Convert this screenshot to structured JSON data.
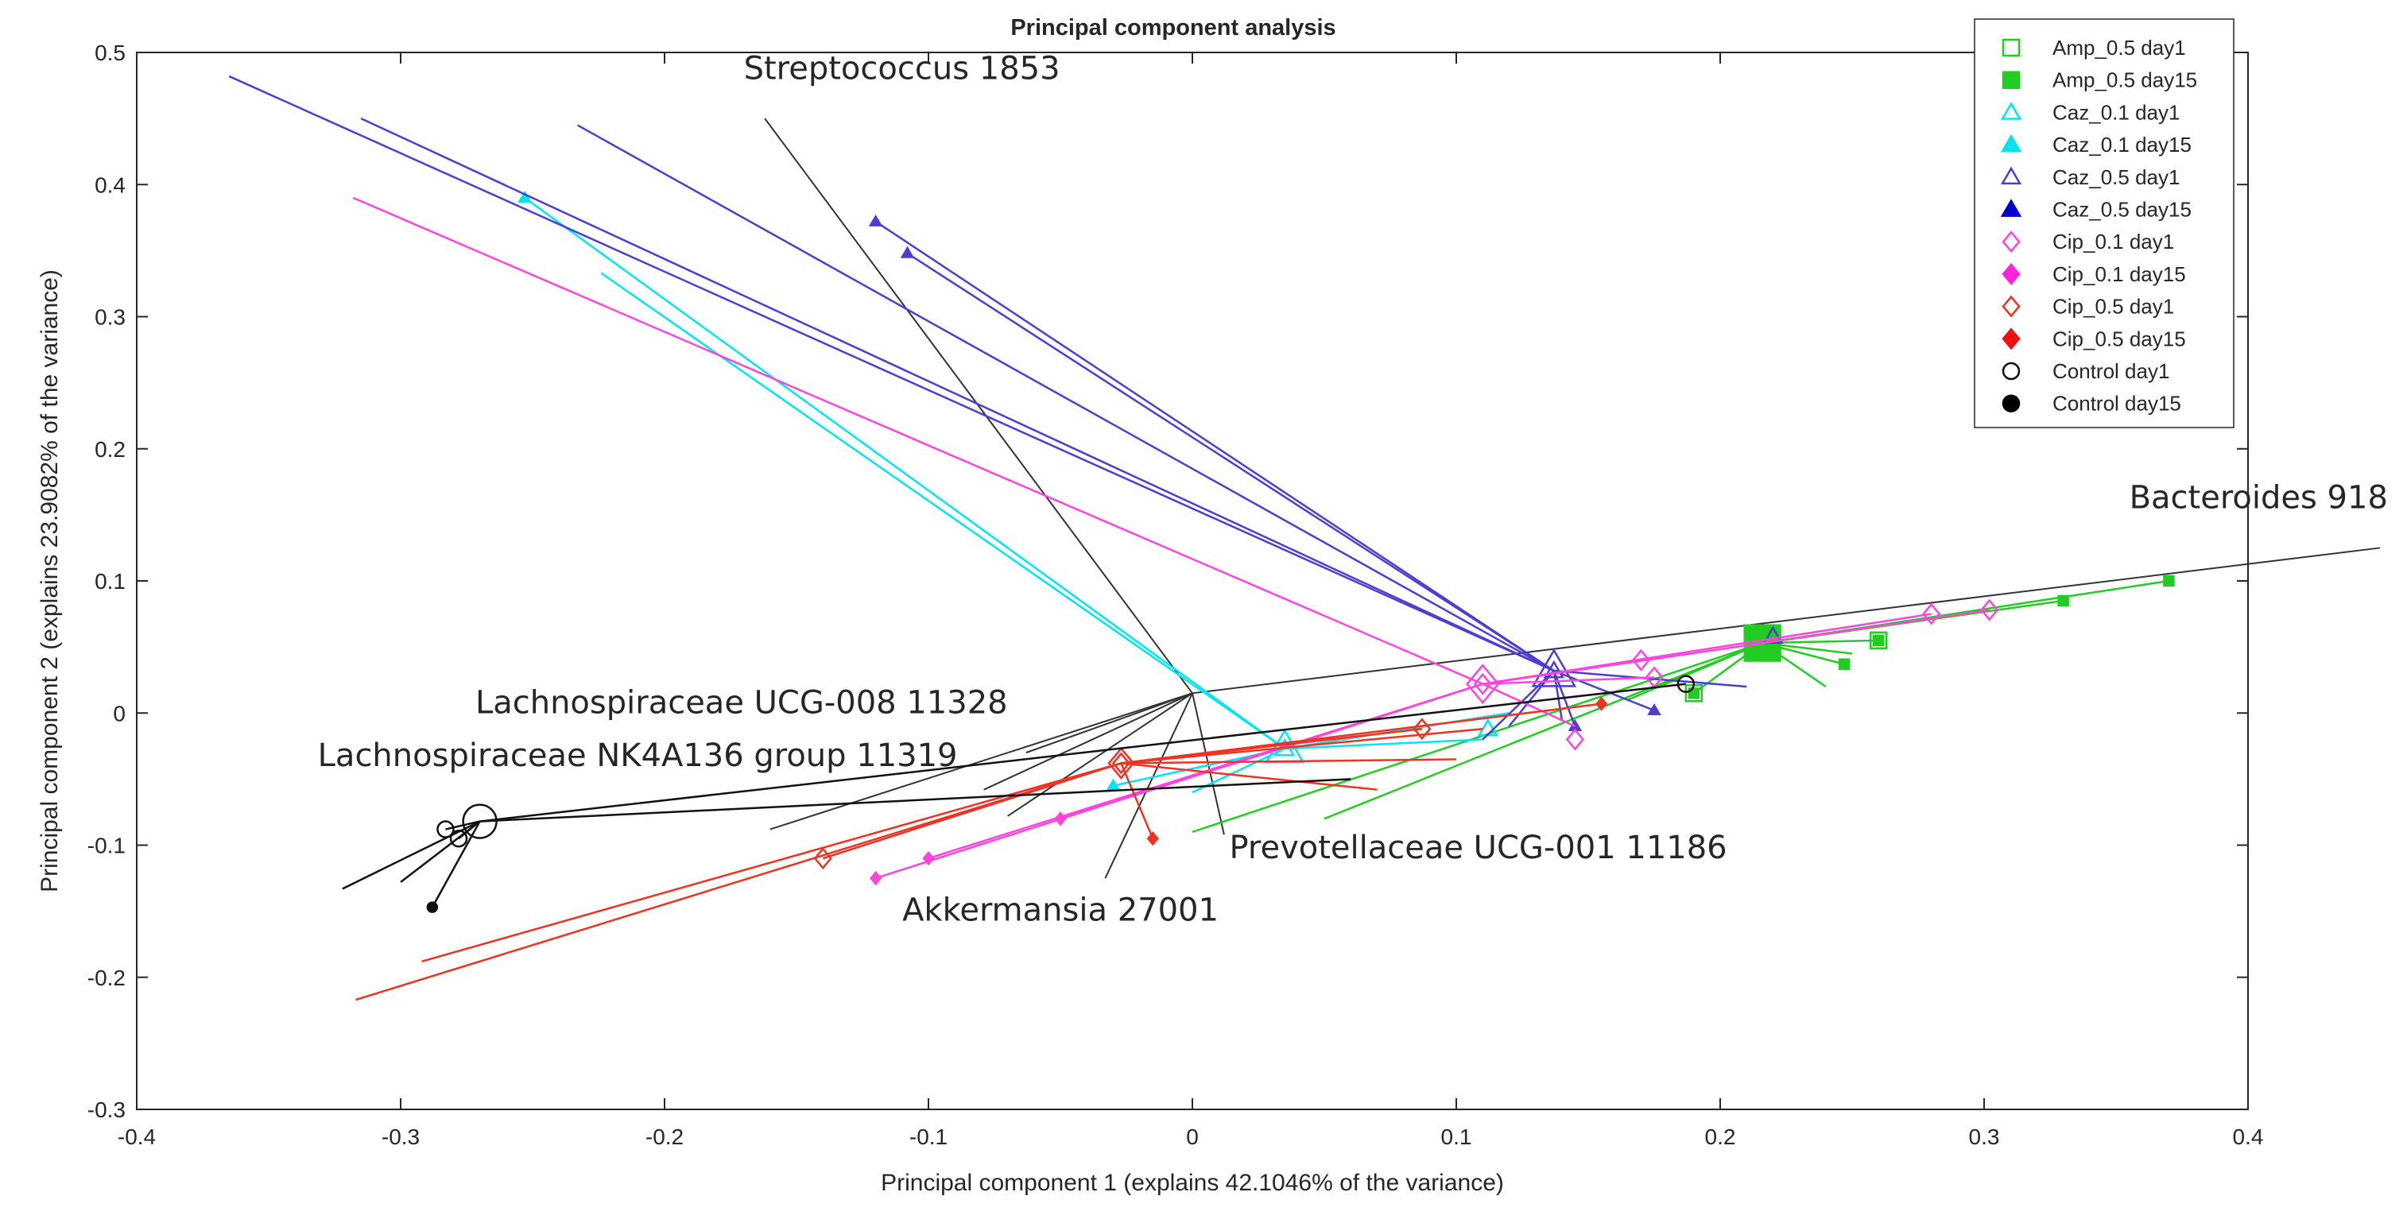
{
  "chart_data": {
    "type": "scatter",
    "title": "Principal component analysis",
    "xlabel": "Principal component 1 (explains 42.1046% of the variance)",
    "ylabel": "Principal component 2 (explains 23.9082% of the variance)",
    "xlim": [
      -0.4,
      0.4
    ],
    "ylim": [
      -0.3,
      0.5
    ],
    "xticks": [
      -0.4,
      -0.3,
      -0.2,
      -0.1,
      0,
      0.1,
      0.2,
      0.3,
      0.4
    ],
    "xtick_labels": [
      "-0.4",
      "-0.3",
      "-0.2",
      "-0.1",
      "0",
      "0.1",
      "0.2",
      "0.3",
      "0.4"
    ],
    "yticks": [
      -0.3,
      -0.2,
      -0.1,
      0,
      0.1,
      0.2,
      0.3,
      0.4,
      0.5
    ],
    "ytick_labels": [
      "-0.3",
      "-0.2",
      "-0.1",
      "0",
      "0.1",
      "0.2",
      "0.3",
      "0.4",
      "0.5"
    ],
    "grid": false,
    "legend_position": "top-right",
    "legend": [
      {
        "label": "Amp_0.5 day1",
        "color": "#22cc22",
        "marker": "square",
        "filled": false
      },
      {
        "label": "Amp_0.5 day15",
        "color": "#22cc22",
        "marker": "square",
        "filled": true
      },
      {
        "label": "Caz_0.1 day1",
        "color": "#00e5ee",
        "marker": "triangle",
        "filled": false
      },
      {
        "label": "Caz_0.1 day15",
        "color": "#00e5ee",
        "marker": "triangle",
        "filled": true
      },
      {
        "label": "Caz_0.5 day1",
        "color": "#4a3fd0",
        "marker": "triangle",
        "filled": false
      },
      {
        "label": "Caz_0.5 day15",
        "color": "#0000cc",
        "marker": "triangle",
        "filled": true
      },
      {
        "label": "Cip_0.1 day1",
        "color": "#ff44dd",
        "marker": "diamond",
        "filled": false
      },
      {
        "label": "Cip_0.1 day15",
        "color": "#ff22dd",
        "marker": "diamond",
        "filled": true
      },
      {
        "label": "Cip_0.5 day1",
        "color": "#ee3322",
        "marker": "diamond",
        "filled": false
      },
      {
        "label": "Cip_0.5 day15",
        "color": "#ee1111",
        "marker": "diamond",
        "filled": true
      },
      {
        "label": "Control day1",
        "color": "#111111",
        "marker": "circle",
        "filled": false
      },
      {
        "label": "Control day15",
        "color": "#000000",
        "marker": "circle",
        "filled": true
      }
    ],
    "loadings_origin": [
      0,
      0.015
    ],
    "loadings": [
      {
        "name": "Streptococcus 1853",
        "end": [
          -0.162,
          0.45
        ],
        "label_at": [
          -0.17,
          0.48
        ],
        "label_anchor": "start"
      },
      {
        "name": "Bacteroides 918",
        "end": [
          0.45,
          0.125
        ],
        "label_at": [
          0.355,
          0.155
        ],
        "label_anchor": "start"
      },
      {
        "name": "Lachnospiraceae UCG-008 11328",
        "end": [
          -0.063,
          -0.03
        ],
        "label_at": [
          -0.07,
          0.0
        ],
        "label_anchor": "end"
      },
      {
        "name": "Lachnospiraceae NK4A136 group 11319",
        "end": [
          -0.079,
          -0.058
        ],
        "label_at": [
          -0.089,
          -0.04
        ],
        "label_anchor": "end"
      },
      {
        "name": "Prevotellaceae UCG-001 11186",
        "end": [
          0.012,
          -0.092
        ],
        "label_at": [
          0.014,
          -0.11
        ],
        "label_anchor": "start"
      },
      {
        "name": "Akkermansia 27001",
        "end": [
          -0.033,
          -0.125
        ],
        "label_at": [
          -0.05,
          -0.157
        ],
        "label_anchor": "middle"
      },
      {
        "name": "",
        "end": [
          -0.16,
          -0.088
        ],
        "label_at": [
          0,
          0
        ],
        "label_anchor": "start"
      },
      {
        "name": "",
        "end": [
          -0.07,
          -0.078
        ],
        "label_at": [
          0,
          0
        ],
        "label_anchor": "start"
      }
    ],
    "series": [
      {
        "name": "Amp_0.5",
        "color": "#22cc22",
        "marker": "square",
        "centroid": [
          0.216,
          0.053
        ],
        "centroid_marker": "filled",
        "centroid_size": 32,
        "spokes": [
          [
            0.37,
            0.1
          ],
          [
            0.33,
            0.085
          ],
          [
            0.26,
            0.055
          ],
          [
            0.247,
            0.037
          ],
          [
            0.19,
            0.015
          ],
          [
            0.165,
            0.01
          ],
          [
            0.05,
            -0.08
          ],
          [
            0.0,
            -0.09
          ],
          [
            0.25,
            0.045
          ],
          [
            0.24,
            0.02
          ]
        ],
        "points_day1": [
          [
            0.215,
            0.055
          ],
          [
            0.19,
            0.015
          ],
          [
            0.26,
            0.055
          ]
        ],
        "points_day15": [
          [
            0.247,
            0.037
          ],
          [
            0.26,
            0.055
          ],
          [
            0.19,
            0.015
          ],
          [
            0.33,
            0.085
          ],
          [
            0.37,
            0.1
          ]
        ]
      },
      {
        "name": "Caz_0.1",
        "color": "#00e5ee",
        "marker": "triangle",
        "centroid": [
          0.035,
          -0.027
        ],
        "centroid_marker": "open",
        "centroid_size": 30,
        "spokes": [
          [
            -0.253,
            0.39
          ],
          [
            -0.224,
            0.333
          ],
          [
            0.12,
            0.0
          ],
          [
            0.11,
            -0.02
          ],
          [
            -0.03,
            -0.055
          ],
          [
            0.0,
            -0.06
          ]
        ],
        "points_day1": [
          [
            0.035,
            -0.027
          ],
          [
            0.112,
            -0.012
          ]
        ],
        "points_day15": [
          [
            -0.253,
            0.39
          ],
          [
            -0.03,
            -0.055
          ]
        ]
      },
      {
        "name": "Caz_0.5",
        "color": "#4a3fd0",
        "marker": "triangle",
        "centroid": [
          0.137,
          0.032
        ],
        "centroid_marker": "open",
        "centroid_size": 34,
        "spokes": [
          [
            -0.365,
            0.482
          ],
          [
            -0.315,
            0.45
          ],
          [
            -0.233,
            0.445
          ],
          [
            -0.12,
            0.372
          ],
          [
            -0.108,
            0.348
          ],
          [
            0.21,
            0.02
          ],
          [
            0.175,
            0.002
          ],
          [
            0.145,
            -0.01
          ],
          [
            0.14,
            -0.005
          ],
          [
            0.12,
            -0.01
          ],
          [
            0.11,
            -0.02
          ]
        ],
        "points_day1": [
          [
            0.137,
            0.032
          ],
          [
            0.22,
            0.058
          ]
        ],
        "points_day15": [
          [
            0.175,
            0.002
          ],
          [
            0.145,
            -0.01
          ],
          [
            -0.12,
            0.372
          ],
          [
            -0.108,
            0.348
          ]
        ]
      },
      {
        "name": "Cip_0.1",
        "color": "#ff44dd",
        "marker": "diamond",
        "centroid": [
          0.11,
          0.022
        ],
        "centroid_marker": "open",
        "centroid_size": 28,
        "spokes": [
          [
            -0.318,
            0.39
          ],
          [
            0.28,
            0.075
          ],
          [
            0.302,
            0.078
          ],
          [
            0.17,
            0.04
          ],
          [
            0.175,
            0.027
          ],
          [
            0.145,
            -0.01
          ],
          [
            -0.1,
            -0.11
          ],
          [
            -0.12,
            -0.125
          ],
          [
            -0.05,
            -0.08
          ]
        ],
        "points_day1": [
          [
            0.11,
            0.022
          ],
          [
            0.28,
            0.075
          ],
          [
            0.302,
            0.078
          ],
          [
            0.17,
            0.04
          ],
          [
            0.175,
            0.027
          ],
          [
            0.145,
            -0.02
          ]
        ],
        "points_day15": [
          [
            -0.1,
            -0.11
          ],
          [
            -0.12,
            -0.125
          ],
          [
            -0.05,
            -0.08
          ]
        ]
      },
      {
        "name": "Cip_0.5",
        "color": "#ee3322",
        "marker": "diamond",
        "centroid": [
          -0.027,
          -0.038
        ],
        "centroid_marker": "open",
        "centroid_size": 22,
        "spokes": [
          [
            -0.14,
            -0.11
          ],
          [
            -0.317,
            -0.217
          ],
          [
            -0.292,
            -0.188
          ],
          [
            0.087,
            -0.012
          ],
          [
            0.155,
            0.007
          ],
          [
            0.11,
            -0.012
          ],
          [
            0.07,
            -0.058
          ],
          [
            0.1,
            -0.035
          ],
          [
            -0.015,
            -0.095
          ]
        ],
        "points_day1": [
          [
            -0.027,
            -0.038
          ],
          [
            -0.14,
            -0.11
          ],
          [
            0.087,
            -0.012
          ]
        ],
        "points_day15": [
          [
            -0.015,
            -0.095
          ],
          [
            0.155,
            0.007
          ]
        ]
      },
      {
        "name": "Control",
        "color": "#111111",
        "marker": "circle",
        "centroid": [
          -0.27,
          -0.082
        ],
        "centroid_marker": "open",
        "centroid_size": 30,
        "spokes": [
          [
            -0.322,
            -0.133
          ],
          [
            -0.3,
            -0.128
          ],
          [
            -0.283,
            -0.088
          ],
          [
            -0.278,
            -0.095
          ],
          [
            -0.288,
            -0.147
          ],
          [
            0.187,
            0.022
          ],
          [
            0.06,
            -0.05
          ]
        ],
        "points_day1": [
          [
            -0.283,
            -0.088
          ],
          [
            -0.278,
            -0.095
          ],
          [
            0.187,
            0.022
          ]
        ],
        "points_day15": [
          [
            -0.288,
            -0.147
          ]
        ]
      }
    ]
  }
}
